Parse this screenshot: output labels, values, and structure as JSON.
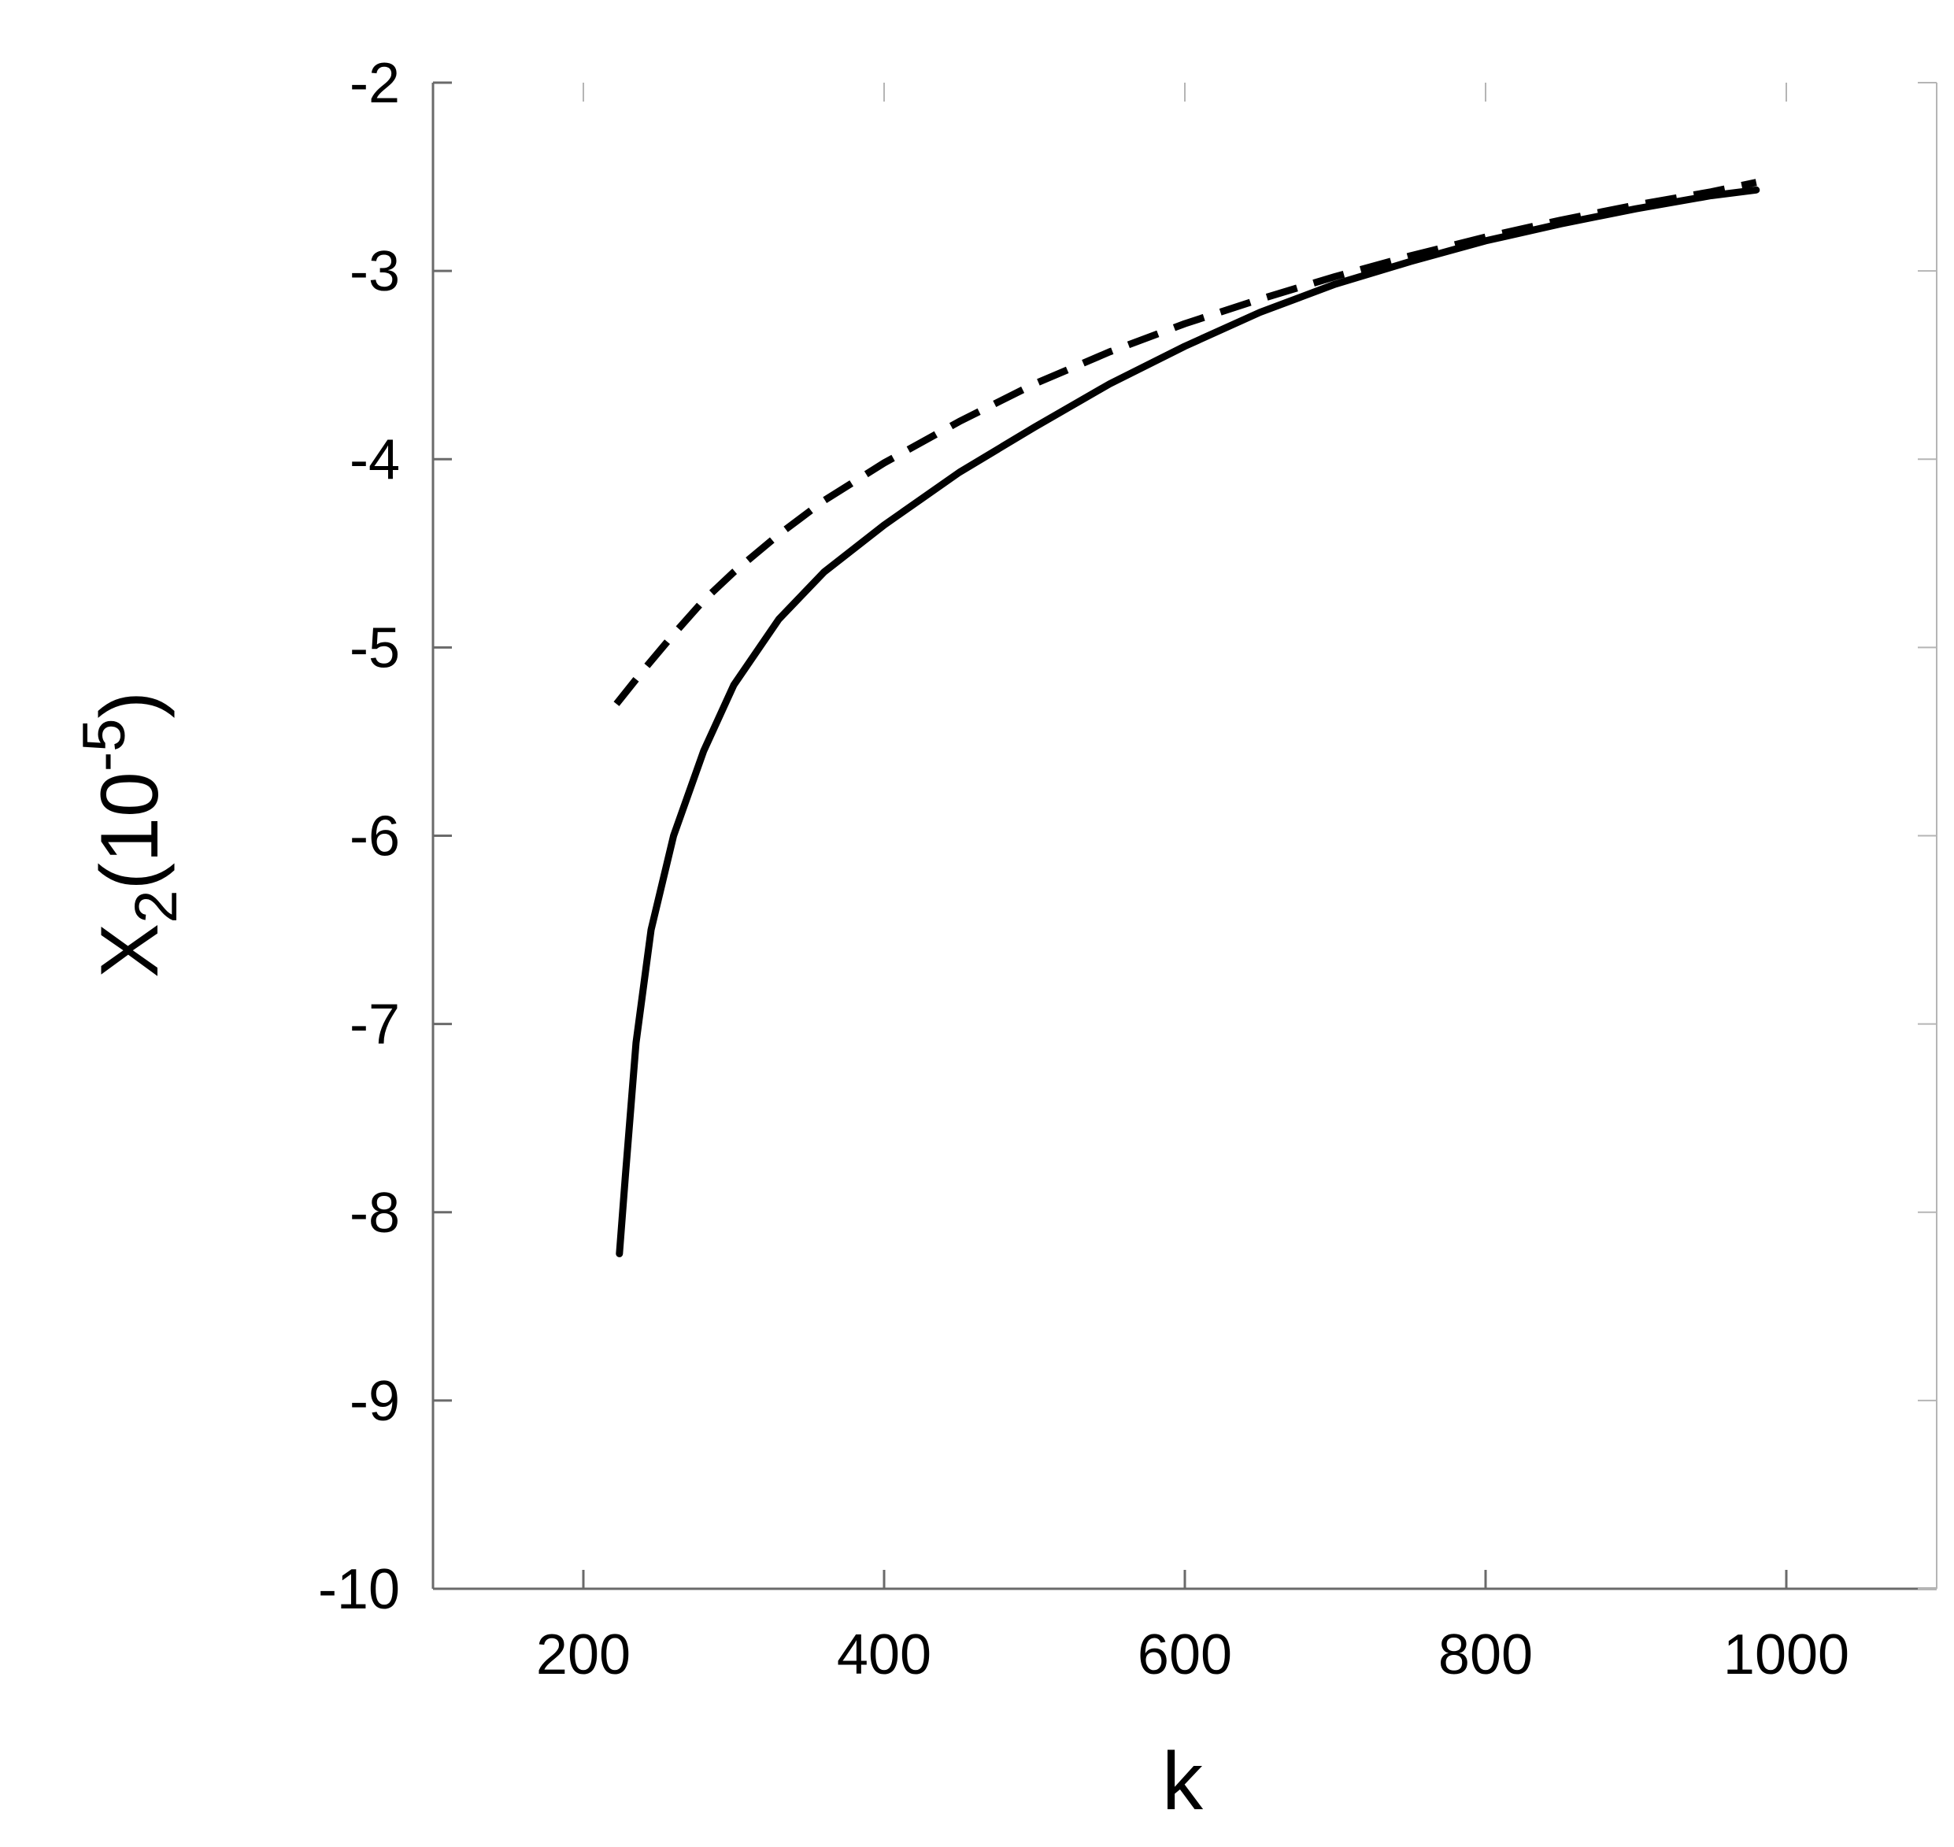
{
  "chart_data": {
    "type": "line",
    "title": "",
    "xlabel": "k",
    "ylabel": {
      "base": "X",
      "subscript": "2",
      "open": "(10",
      "exponent": "-5",
      "close": ")"
    },
    "xlim": [
      100,
      1100
    ],
    "ylim": [
      -10,
      -2
    ],
    "x_ticks": [
      200,
      400,
      600,
      800,
      1000
    ],
    "x_tick_labels": [
      "200",
      "400",
      "600",
      "800",
      "1000"
    ],
    "y_ticks": [
      -10,
      -9,
      -8,
      -7,
      -6,
      -5,
      -4,
      -3,
      -2
    ],
    "y_tick_labels": [
      "-10",
      "-9",
      "-8",
      "-7",
      "-6",
      "-5",
      "-4",
      "-3",
      "-2"
    ],
    "grid": false,
    "legend": "none",
    "series": [
      {
        "style": "solid",
        "color": "#000000",
        "x": [
          224,
          228,
          235,
          245,
          260,
          280,
          300,
          330,
          360,
          400,
          450,
          500,
          550,
          600,
          650,
          700,
          750,
          800,
          850,
          900,
          950,
          980
        ],
        "y": [
          -8.22,
          -7.8,
          -7.1,
          -6.5,
          -6.0,
          -5.55,
          -5.2,
          -4.85,
          -4.6,
          -4.35,
          -4.07,
          -3.83,
          -3.6,
          -3.4,
          -3.22,
          -3.07,
          -2.95,
          -2.84,
          -2.75,
          -2.67,
          -2.6,
          -2.57
        ]
      },
      {
        "style": "dashed",
        "color": "#000000",
        "x": [
          222,
          240,
          260,
          280,
          300,
          330,
          360,
          400,
          450,
          500,
          550,
          600,
          650,
          700,
          750,
          800,
          850,
          900,
          950,
          980
        ],
        "y": [
          -5.3,
          -5.12,
          -4.93,
          -4.75,
          -4.6,
          -4.4,
          -4.22,
          -4.02,
          -3.8,
          -3.6,
          -3.43,
          -3.28,
          -3.15,
          -3.03,
          -2.92,
          -2.82,
          -2.73,
          -2.65,
          -2.58,
          -2.53
        ]
      }
    ]
  }
}
